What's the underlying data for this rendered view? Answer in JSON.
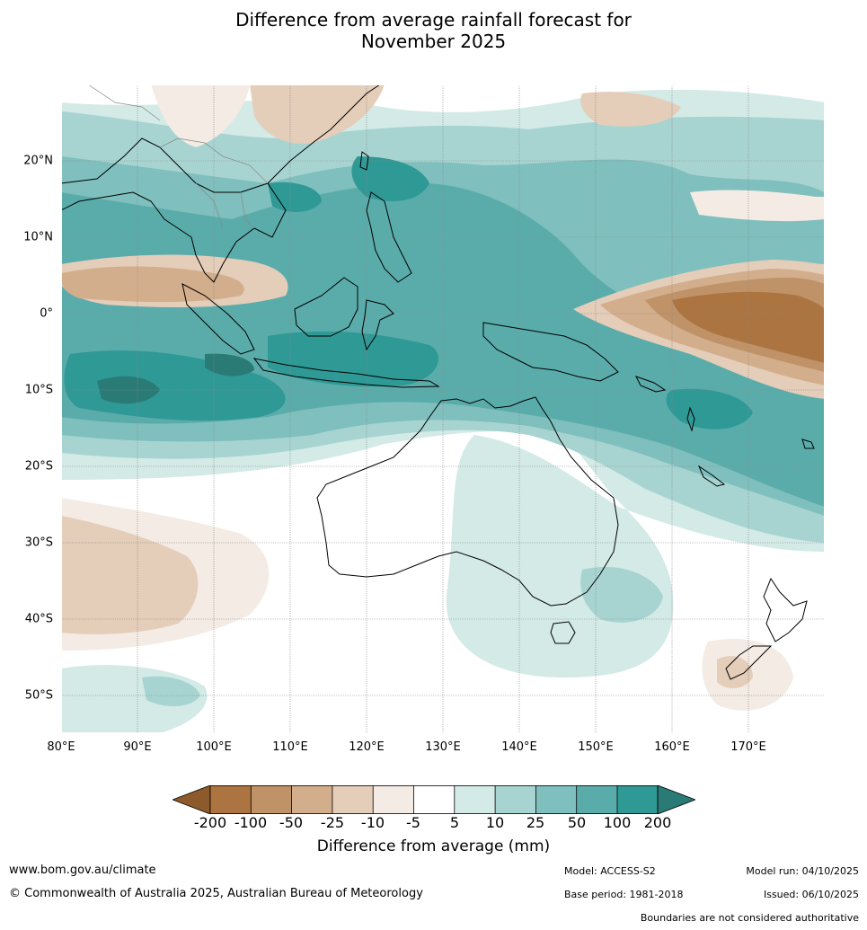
{
  "title": {
    "line1": "Difference from average rainfall forecast for",
    "line2": "November 2025"
  },
  "map": {
    "projection": "equirectangular",
    "lon_range": [
      80,
      180
    ],
    "lat_range": [
      -55,
      30
    ],
    "lat_ticks": [
      "20°N",
      "10°N",
      "0°",
      "10°S",
      "20°S",
      "30°S",
      "40°S",
      "50°S"
    ],
    "lon_ticks": [
      "80°E",
      "90°E",
      "100°E",
      "110°E",
      "120°E",
      "130°E",
      "140°E",
      "150°E",
      "160°E",
      "170°E"
    ],
    "regions": [
      "Australia",
      "Indonesia",
      "New Guinea",
      "Philippines",
      "Southeast Asia",
      "New Zealand",
      "Indian Ocean",
      "Pacific Ocean"
    ]
  },
  "colorbar": {
    "labels": [
      "-200",
      "-100",
      "-50",
      "-25",
      "-10",
      "-5",
      "5",
      "10",
      "25",
      "50",
      "100",
      "200"
    ],
    "colors": [
      "#8c5a2b",
      "#ab7440",
      "#bf9268",
      "#d3ae8c",
      "#e4cdb9",
      "#f3ebe4",
      "#ffffff",
      "#d3eae7",
      "#a7d4d1",
      "#7fbfbd",
      "#5aacab",
      "#2f9995",
      "#2a7a76"
    ],
    "title": "Difference from average (mm)"
  },
  "footer": {
    "website": "www.bom.gov.au/climate",
    "copyright": "© Commonwealth of Australia 2025, Australian Bureau of Meteorology",
    "model": "Model: ACCESS-S2",
    "base_period": "Base period: 1981-2018",
    "model_run": "Model run: 04/10/2025",
    "issued": "Issued: 06/10/2025",
    "disclaimer": "Boundaries are not considered authoritative"
  }
}
